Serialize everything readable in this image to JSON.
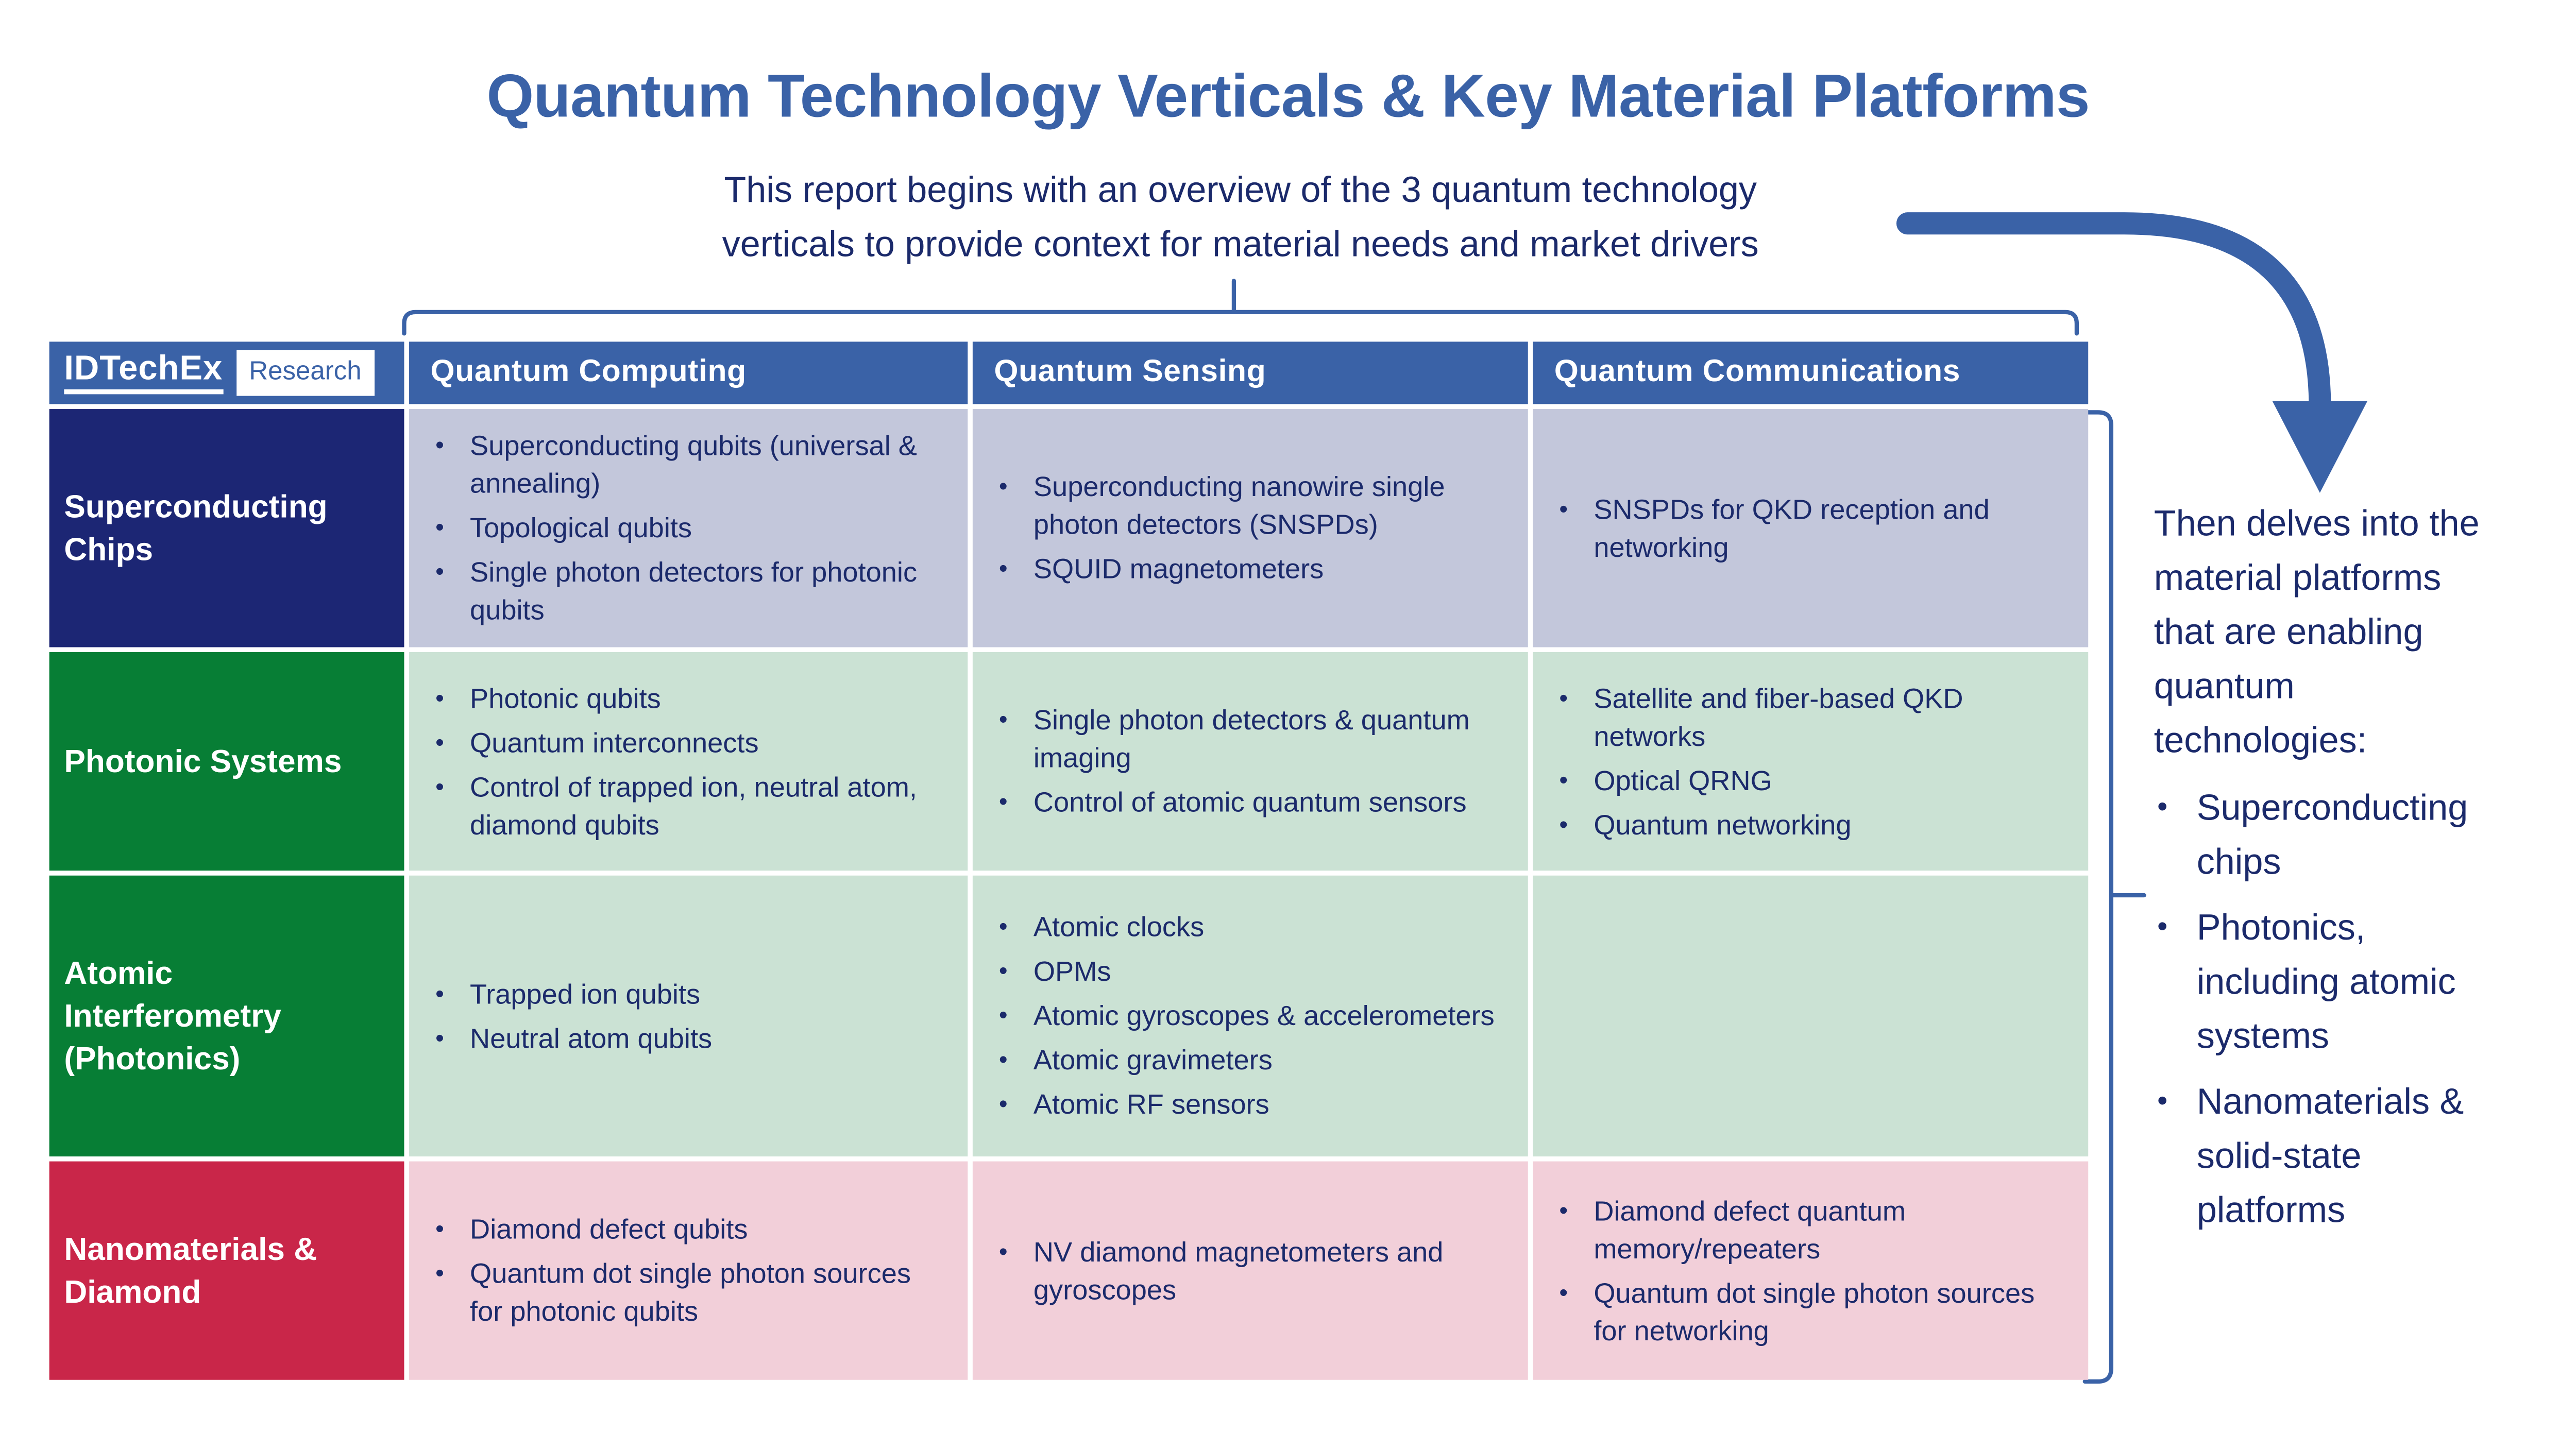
{
  "title": "Quantum Technology Verticals & Key Material Platforms",
  "subtitle": {
    "line1": "This report begins with an overview of the 3 quantum technology",
    "line2": "verticals to provide context for material needs and market drivers"
  },
  "logo": {
    "brand": "IDTechEx",
    "research": "Research"
  },
  "table": {
    "column_headers": [
      "Quantum Computing",
      "Quantum Sensing",
      "Quantum Communications"
    ],
    "rows": [
      {
        "label": "Superconducting Chips",
        "label_bg": "#1C2674",
        "cell_bg": "#C3C7DB",
        "cells": [
          [
            "Superconducting qubits (universal & annealing)",
            "Topological qubits",
            "Single photon detectors for photonic qubits"
          ],
          [
            "Superconducting nanowire single photon detectors (SNSPDs)",
            "SQUID magnetometers"
          ],
          [
            "SNSPDs for QKD reception and networking"
          ]
        ]
      },
      {
        "label": "Photonic Systems",
        "label_bg": "#077E35",
        "cell_bg": "#CBE2D4",
        "cells": [
          [
            "Photonic qubits",
            "Quantum interconnects",
            "Control of trapped ion, neutral atom, diamond qubits"
          ],
          [
            "Single photon detectors & quantum imaging",
            "Control of atomic quantum sensors"
          ],
          [
            "Satellite and fiber-based QKD networks",
            "Optical QRNG",
            "Quantum networking"
          ]
        ]
      },
      {
        "label": "Atomic Interferometry (Photonics)",
        "label_bg": "#077E35",
        "cell_bg": "#CBE2D4",
        "cells": [
          [
            "Trapped ion qubits",
            "Neutral atom qubits"
          ],
          [
            "Atomic clocks",
            "OPMs",
            "Atomic gyroscopes & accelerometers",
            "Atomic gravimeters",
            "Atomic RF sensors"
          ],
          []
        ]
      },
      {
        "label": "Nanomaterials & Diamond",
        "label_bg": "#C92649",
        "cell_bg": "#F2CFD9",
        "cells": [
          [
            "Diamond defect qubits",
            "Quantum dot single photon sources for photonic qubits"
          ],
          [
            "NV diamond magnetometers and gyroscopes"
          ],
          [
            "Diamond defect quantum memory/repeaters",
            "Quantum dot single photon sources for networking"
          ]
        ]
      }
    ]
  },
  "side_note": {
    "intro": "Then delves into the material platforms that are enabling quantum technologies:",
    "bullets": [
      "Superconducting chips",
      "Photonics, including atomic systems",
      "Nanomaterials & solid-state platforms"
    ]
  },
  "bullet_glyph": "•",
  "colors": {
    "accent": "#3A62A7",
    "ink": "#1B2A6B",
    "navy_row": "#1C2674",
    "green_row": "#077E35",
    "red_row": "#C92649",
    "lavender_cell": "#C3C7DB",
    "green_cell": "#CBE2D4",
    "pink_cell": "#F2CFD9"
  }
}
